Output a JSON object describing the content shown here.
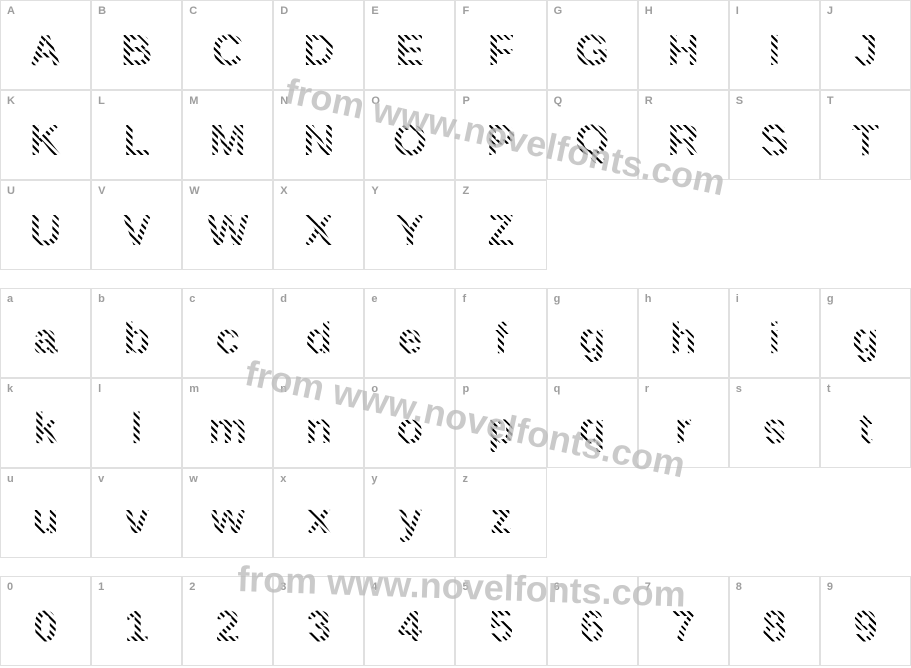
{
  "watermark_text": "from www.novelfonts.com",
  "watermark_color": "#bdbdbd",
  "cell_border_color": "#e0e0e0",
  "label_color": "#9e9e9e",
  "label_fontsize": 11,
  "glyph_fontsize": 44,
  "stripe_color_dark": "#000000",
  "stripe_color_light": "#ffffff",
  "stripe_angle_deg": 45,
  "background_color": "#ffffff",
  "rows": {
    "upper1": {
      "labels": [
        "A",
        "B",
        "C",
        "D",
        "E",
        "F",
        "G",
        "H",
        "I",
        "J"
      ],
      "glyphs": [
        "A",
        "B",
        "C",
        "D",
        "E",
        "F",
        "G",
        "H",
        "I",
        "J"
      ]
    },
    "upper2": {
      "labels": [
        "K",
        "L",
        "M",
        "N",
        "O",
        "P",
        "Q",
        "R",
        "S",
        "T"
      ],
      "glyphs": [
        "K",
        "L",
        "M",
        "N",
        "O",
        "P",
        "Q",
        "R",
        "S",
        "T"
      ]
    },
    "upper3": {
      "labels": [
        "U",
        "V",
        "W",
        "X",
        "Y",
        "Z",
        "",
        "",
        "",
        ""
      ],
      "glyphs": [
        "U",
        "V",
        "W",
        "X",
        "Y",
        "Z",
        "",
        "",
        "",
        ""
      ]
    },
    "lower1": {
      "labels": [
        "a",
        "b",
        "c",
        "d",
        "e",
        "f",
        "g",
        "h",
        "i",
        "g"
      ],
      "glyphs": [
        "a",
        "b",
        "c",
        "d",
        "e",
        "f",
        "g",
        "h",
        "i",
        "g"
      ]
    },
    "lower2": {
      "labels": [
        "k",
        "l",
        "m",
        "n",
        "o",
        "p",
        "q",
        "r",
        "s",
        "t"
      ],
      "glyphs": [
        "k",
        "l",
        "m",
        "n",
        "o",
        "p",
        "q",
        "r",
        "s",
        "t"
      ]
    },
    "lower3": {
      "labels": [
        "u",
        "v",
        "w",
        "x",
        "y",
        "z",
        "",
        "",
        "",
        ""
      ],
      "glyphs": [
        "u",
        "v",
        "w",
        "x",
        "y",
        "z",
        "",
        "",
        "",
        ""
      ]
    },
    "digits": {
      "labels": [
        "0",
        "1",
        "2",
        "3",
        "4",
        "5",
        "6",
        "7",
        "8",
        "9"
      ],
      "glyphs": [
        "0",
        "1",
        "2",
        "3",
        "4",
        "5",
        "6",
        "7",
        "8",
        "9"
      ]
    }
  }
}
